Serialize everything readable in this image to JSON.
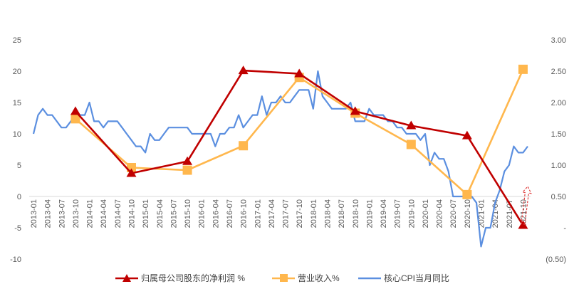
{
  "chart_data": {
    "type": "line",
    "title": "",
    "xlabel": "",
    "ylabel": "",
    "left_axis": {
      "ylim": [
        -10,
        25
      ],
      "tick_labels": [
        "25",
        "20",
        "15",
        "10",
        "5",
        "0",
        "-5",
        "-10"
      ],
      "tick_values": [
        25,
        20,
        15,
        10,
        5,
        0,
        -5,
        -10
      ]
    },
    "right_axis": {
      "ylim": [
        -0.5,
        3.0
      ],
      "tick_labels": [
        "3.00",
        "2.50",
        "2.00",
        "1.50",
        "1.00",
        "0.50",
        "-",
        "(0.50)"
      ],
      "tick_values": [
        3.0,
        2.5,
        2.0,
        1.5,
        1.0,
        0.5,
        0.0,
        -0.5
      ]
    },
    "x_tick_labels": [
      "2013-01",
      "2013-04",
      "2013-07",
      "2013-10",
      "2014-01",
      "2014-04",
      "2014-07",
      "2014-10",
      "2015-01",
      "2015-04",
      "2015-07",
      "2015-10",
      "2016-01",
      "2016-04",
      "2016-07",
      "2016-10",
      "2017-01",
      "2017-04",
      "2017-07",
      "2017-10",
      "2018-01",
      "2018-04",
      "2018-07",
      "2018-10",
      "2019-01",
      "2019-04",
      "2019-07",
      "2019-10",
      "2020-01",
      "2020-04",
      "2020-07",
      "2020-10",
      "2021-01",
      "2021-04",
      "2021-07",
      "2021-10"
    ],
    "x_start": "2013-01",
    "x_end": "2021-11",
    "series": [
      {
        "name": "归属母公司股东的净利润 %",
        "axis": "left",
        "color": "#C00000",
        "marker": "triangle",
        "points": [
          [
            "2013-10",
            13.6
          ],
          [
            "2014-10",
            3.7
          ],
          [
            "2015-10",
            5.6
          ],
          [
            "2016-10",
            20.1
          ],
          [
            "2017-10",
            19.6
          ],
          [
            "2018-10",
            13.6
          ],
          [
            "2019-10",
            11.3
          ],
          [
            "2020-10",
            9.7
          ],
          [
            "2021-10",
            -4.6
          ]
        ]
      },
      {
        "name": "营业收入%",
        "axis": "left",
        "color": "#FFB74D",
        "marker": "square",
        "points": [
          [
            "2013-10",
            12.4
          ],
          [
            "2014-10",
            4.6
          ],
          [
            "2015-10",
            4.2
          ],
          [
            "2016-10",
            8.1
          ],
          [
            "2017-10",
            19.0
          ],
          [
            "2018-10",
            13.3
          ],
          [
            "2019-10",
            8.3
          ],
          [
            "2020-10",
            0.3
          ],
          [
            "2021-10",
            20.3
          ]
        ]
      },
      {
        "name": "核心CPI当月同比",
        "axis": "right",
        "color": "#5B8FE0",
        "marker": "none",
        "values": [
          1.5,
          1.8,
          1.9,
          1.8,
          1.8,
          1.7,
          1.6,
          1.6,
          1.7,
          1.8,
          1.8,
          1.8,
          2.0,
          1.7,
          1.7,
          1.6,
          1.7,
          1.7,
          1.7,
          1.6,
          1.5,
          1.4,
          1.3,
          1.3,
          1.2,
          1.5,
          1.4,
          1.4,
          1.5,
          1.6,
          1.6,
          1.6,
          1.6,
          1.6,
          1.5,
          1.5,
          1.5,
          1.5,
          1.5,
          1.3,
          1.5,
          1.5,
          1.6,
          1.6,
          1.8,
          1.6,
          1.7,
          1.8,
          1.8,
          2.1,
          1.8,
          2.0,
          2.0,
          2.1,
          2.0,
          2.0,
          2.1,
          2.2,
          2.2,
          2.2,
          1.9,
          2.5,
          2.1,
          2.0,
          1.9,
          1.9,
          1.9,
          1.9,
          2.0,
          1.7,
          1.7,
          1.7,
          1.9,
          1.8,
          1.8,
          1.8,
          1.7,
          1.7,
          1.6,
          1.6,
          1.5,
          1.5,
          1.5,
          1.4,
          1.5,
          1.0,
          1.2,
          1.1,
          1.1,
          0.9,
          0.5,
          0.5,
          0.5,
          0.5,
          0.5,
          0.4,
          -0.3,
          0.0,
          0.0,
          0.4,
          0.6,
          0.9,
          1.0,
          1.3,
          1.2,
          1.2,
          1.3
        ]
      }
    ],
    "annotation": {
      "type": "dashed-arrow",
      "color": "#E04040",
      "from": [
        "2021-10",
        -4.4
      ],
      "to": [
        "2021-11",
        1.6
      ]
    },
    "legend": {
      "placement": "bottom",
      "items": [
        "归属母公司股东的净利润 %",
        "营业收入%",
        "核心CPI当月同比"
      ]
    },
    "grid": false
  }
}
